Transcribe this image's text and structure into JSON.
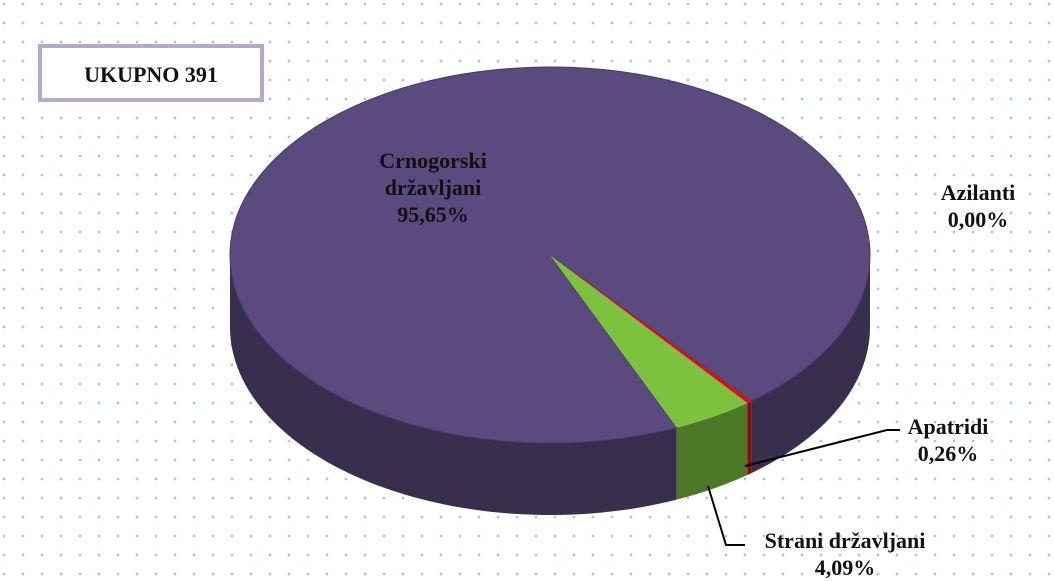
{
  "chart_data": {
    "type": "pie3d",
    "annotation": "UKUPNO 391",
    "categories": [
      "Crnogorski državljani",
      "Strani državljani",
      "Apatridi",
      "Azilanti"
    ],
    "values": [
      95.65,
      4.09,
      0.26,
      0.0
    ],
    "value_labels": [
      "95,65%",
      "4,09%",
      "0,26%",
      "0,00%"
    ],
    "colors": [
      "#5a4a7e",
      "#7cc23f",
      "#e01010",
      "#4472c4"
    ]
  }
}
